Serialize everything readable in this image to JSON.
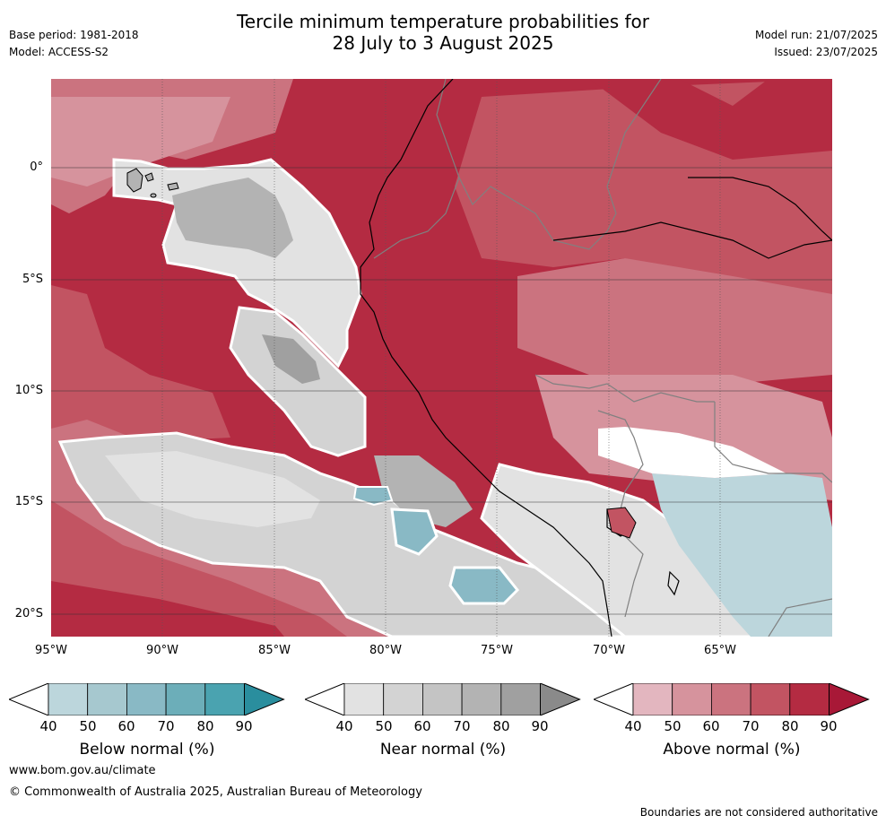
{
  "header": {
    "title_line1": "Tercile minimum temperature probabilities for",
    "title_line2": "28 July to 3 August 2025",
    "base_period": "Base period: 1981-2018",
    "model": "Model: ACCESS-S2",
    "model_run": "Model run: 21/07/2025",
    "issued": "Issued: 23/07/2025"
  },
  "map": {
    "lat_labels": [
      "0°",
      "5°S",
      "10°S",
      "15°S",
      "20°S"
    ],
    "lon_labels": [
      "95°W",
      "90°W",
      "85°W",
      "80°W",
      "75°W",
      "70°W",
      "65°W"
    ]
  },
  "colorbars": [
    {
      "title": "Below normal (%)",
      "ticks": [
        "40",
        "50",
        "60",
        "70",
        "80",
        "90"
      ],
      "colors": [
        "#ffffff",
        "#bcd6dc",
        "#a6c8cf",
        "#89b9c5",
        "#6caeb9",
        "#4aa3b0",
        "#2a8e9e"
      ]
    },
    {
      "title": "Near normal (%)",
      "ticks": [
        "40",
        "50",
        "60",
        "70",
        "80",
        "90"
      ],
      "colors": [
        "#ffffff",
        "#e2e2e2",
        "#d3d3d3",
        "#c4c4c4",
        "#b3b3b3",
        "#a0a0a0",
        "#8a8a8a"
      ]
    },
    {
      "title": "Above normal (%)",
      "ticks": [
        "40",
        "50",
        "60",
        "70",
        "80",
        "90"
      ],
      "colors": [
        "#ffffff",
        "#e3b6bf",
        "#d6939d",
        "#cb737f",
        "#c25462",
        "#b42b42",
        "#a81837"
      ]
    }
  ],
  "footer": {
    "website": "www.bom.gov.au/climate",
    "copyright": "© Commonwealth of Australia 2025, Australian Bureau of Meteorology",
    "disclaimer": "Boundaries are not considered authoritative"
  }
}
